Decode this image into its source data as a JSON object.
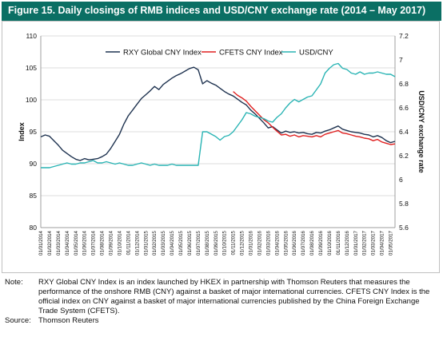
{
  "title": "Figure 15. Daily closings of RMB indices and USD/CNY exchange rate (2014 – May 2017)",
  "notes": {
    "note_label": "Note:",
    "note_text": "RXY Global CNY Index is an index launched by HKEX in partnership with Thomson Reuters that measures the performance of the onshore RMB (CNY) against a basket of major international currencies.  CFETS CNY Index is the official index on CNY against a basket of major international currencies published by the China Foreign Exchange Trade System (CFETS).",
    "source_label": "Source:",
    "source_text": "Thomson Reuters"
  },
  "colors": {
    "title_bg": "#0b6f64",
    "rxy": "#1f3350",
    "cfets": "#e02020",
    "usdcny": "#2ab4b4"
  },
  "chart_data": {
    "type": "line",
    "title": "Figure 15. Daily closings of RMB indices and USD/CNY exchange rate (2014 – May 2017)",
    "ylabel": "Index",
    "y2label": "USD/CNY exchange rate",
    "ylim": [
      80,
      110
    ],
    "y2lim": [
      5.6,
      7.2
    ],
    "yticks": [
      "80",
      "85",
      "90",
      "95",
      "100",
      "105",
      "110"
    ],
    "y2ticks": [
      "5.6",
      "5.8",
      "6",
      "6.2",
      "6.4",
      "6.6",
      "6.8",
      "7",
      "7.2"
    ],
    "x_categories": [
      "01/01/2014",
      "01/02/2014",
      "01/03/2014",
      "01/04/2014",
      "01/05/2014",
      "01/06/2014",
      "01/07/2014",
      "01/08/2014",
      "01/09/2014",
      "01/10/2014",
      "01/11/2014",
      "01/12/2014",
      "01/01/2015",
      "01/02/2015",
      "01/03/2015",
      "01/04/2015",
      "01/05/2015",
      "01/06/2015",
      "01/07/2015",
      "01/08/2015",
      "01/09/2015",
      "01/10/2015",
      "01/11/2015",
      "01/12/2015",
      "01/01/2016",
      "01/02/2016",
      "01/03/2016",
      "01/04/2016",
      "01/05/2016",
      "01/06/2016",
      "01/07/2016",
      "01/08/2016",
      "01/09/2016",
      "01/10/2016",
      "01/11/2016",
      "01/12/2016",
      "01/01/2017",
      "01/02/2017",
      "01/03/2017",
      "01/04/2017",
      "01/05/2017"
    ],
    "grid": true,
    "legend_position": "top",
    "series": [
      {
        "name": "RXY Global CNY Index",
        "axis": "left",
        "color": "#1f3350",
        "x": [
          0,
          0.5,
          1,
          1.5,
          2,
          2.5,
          3,
          3.5,
          4,
          4.5,
          5,
          5.5,
          6,
          6.5,
          7,
          7.5,
          8,
          8.5,
          9,
          9.5,
          10,
          10.5,
          11,
          11.5,
          12,
          12.5,
          13,
          13.5,
          14,
          14.5,
          15,
          15.5,
          16,
          16.5,
          17,
          17.5,
          18,
          18.5,
          19,
          19.5,
          20,
          20.5,
          21,
          21.5,
          22,
          22.5,
          23,
          23.5,
          24,
          24.5,
          25,
          25.5,
          26,
          26.5,
          27,
          27.5,
          28,
          28.5,
          29,
          29.5,
          30,
          30.5,
          31,
          31.5,
          32,
          32.5,
          33,
          33.5,
          34,
          34.5,
          35,
          35.5,
          36,
          36.5,
          37,
          37.5,
          38,
          38.5,
          39,
          39.5,
          40,
          40.5
        ],
        "values": [
          94.2,
          94.5,
          94.3,
          93.6,
          92.9,
          92.1,
          91.6,
          91.1,
          90.7,
          90.5,
          90.8,
          90.6,
          90.7,
          90.8,
          91.1,
          91.5,
          92.4,
          93.5,
          94.6,
          96.2,
          97.5,
          98.4,
          99.3,
          100.2,
          100.8,
          101.4,
          102.1,
          101.6,
          102.4,
          102.9,
          103.4,
          103.8,
          104.1,
          104.5,
          104.9,
          105.1,
          104.7,
          102.5,
          103.0,
          102.6,
          102.3,
          101.8,
          101.3,
          100.9,
          100.6,
          100.1,
          99.6,
          99.2,
          98.4,
          97.8,
          97.1,
          96.4,
          95.6,
          95.8,
          95.3,
          94.8,
          95.1,
          94.9,
          95.0,
          94.8,
          94.9,
          94.7,
          94.6,
          94.9,
          94.8,
          95.1,
          95.3,
          95.6,
          95.9,
          95.4,
          95.2,
          95.0,
          94.9,
          94.8,
          94.6,
          94.5,
          94.2,
          94.4,
          94.1,
          93.6,
          93.3,
          93.5
        ]
      },
      {
        "name": "CFETS CNY Index",
        "axis": "left",
        "color": "#e02020",
        "x": [
          22,
          22.5,
          23,
          23.5,
          24,
          24.5,
          25,
          25.5,
          26,
          26.5,
          27,
          27.5,
          28,
          28.5,
          29,
          29.5,
          30,
          30.5,
          31,
          31.5,
          32,
          32.5,
          33,
          33.5,
          34,
          34.5,
          35,
          35.5,
          36,
          36.5,
          37,
          37.5,
          38,
          38.5,
          39,
          39.5,
          40,
          40.5
        ],
        "values": [
          101.3,
          100.7,
          100.3,
          99.8,
          99.0,
          98.3,
          97.6,
          96.9,
          96.4,
          95.7,
          95.1,
          94.5,
          94.6,
          94.3,
          94.5,
          94.2,
          94.4,
          94.3,
          94.2,
          94.4,
          94.2,
          94.6,
          94.8,
          95.0,
          95.2,
          94.8,
          94.7,
          94.5,
          94.3,
          94.2,
          94.0,
          93.9,
          93.6,
          93.8,
          93.4,
          93.2,
          93.0,
          93.1
        ]
      },
      {
        "name": "USD/CNY",
        "axis": "right",
        "color": "#2ab4b4",
        "x": [
          0,
          0.5,
          1,
          1.5,
          2,
          2.5,
          3,
          3.5,
          4,
          4.5,
          5,
          5.5,
          6,
          6.5,
          7,
          7.5,
          8,
          8.5,
          9,
          9.5,
          10,
          10.5,
          11,
          11.5,
          12,
          12.5,
          13,
          13.5,
          14,
          14.5,
          15,
          15.5,
          16,
          16.5,
          17,
          17.5,
          18,
          18.5,
          19,
          19.5,
          20,
          20.5,
          21,
          21.5,
          22,
          22.5,
          23,
          23.5,
          24,
          24.5,
          25,
          25.5,
          26,
          26.5,
          27,
          27.5,
          28,
          28.5,
          29,
          29.5,
          30,
          30.5,
          31,
          31.5,
          32,
          32.5,
          33,
          33.5,
          34,
          34.5,
          35,
          35.5,
          36,
          36.5,
          37,
          37.5,
          38,
          38.5,
          39,
          39.5,
          40,
          40.5
        ],
        "values": [
          6.1,
          6.1,
          6.1,
          6.11,
          6.12,
          6.13,
          6.14,
          6.13,
          6.13,
          6.14,
          6.14,
          6.15,
          6.16,
          6.14,
          6.14,
          6.15,
          6.14,
          6.13,
          6.14,
          6.13,
          6.12,
          6.12,
          6.13,
          6.14,
          6.13,
          6.12,
          6.13,
          6.12,
          6.12,
          6.12,
          6.13,
          6.12,
          6.12,
          6.12,
          6.12,
          6.12,
          6.12,
          6.4,
          6.4,
          6.38,
          6.36,
          6.33,
          6.36,
          6.37,
          6.4,
          6.45,
          6.5,
          6.56,
          6.55,
          6.53,
          6.52,
          6.51,
          6.49,
          6.48,
          6.52,
          6.55,
          6.6,
          6.64,
          6.67,
          6.65,
          6.67,
          6.69,
          6.7,
          6.75,
          6.8,
          6.89,
          6.93,
          6.96,
          6.97,
          6.93,
          6.92,
          6.89,
          6.88,
          6.9,
          6.88,
          6.89,
          6.89,
          6.9,
          6.89,
          6.88,
          6.88,
          6.86
        ]
      }
    ]
  }
}
